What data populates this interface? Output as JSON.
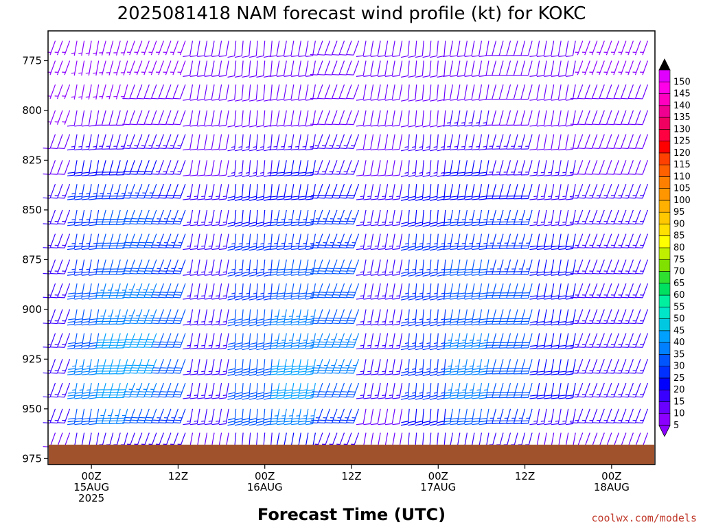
{
  "chart_data": {
    "type": "wind_barb_profile",
    "title": "2025081418 NAM forecast wind profile (kt) for KOKC",
    "xlabel": "Forecast Time (UTC)",
    "ylabel": "",
    "y_axis": {
      "units": "hPa",
      "range": [
        760,
        978
      ],
      "inverted": true,
      "ticks": [
        775,
        800,
        825,
        850,
        875,
        900,
        925,
        950,
        975
      ]
    },
    "x_axis": {
      "units": "forecast hours from 2025-08-14 18Z",
      "range": [
        0,
        84
      ],
      "step_hours": 1,
      "ticks": [
        {
          "hour": 6,
          "lines": [
            "00Z",
            "15AUG",
            "2025"
          ]
        },
        {
          "hour": 18,
          "lines": [
            "12Z"
          ]
        },
        {
          "hour": 30,
          "lines": [
            "00Z",
            "16AUG"
          ]
        },
        {
          "hour": 42,
          "lines": [
            "12Z"
          ]
        },
        {
          "hour": 54,
          "lines": [
            "00Z",
            "17AUG"
          ]
        },
        {
          "hour": 66,
          "lines": [
            "12Z"
          ]
        },
        {
          "hour": 78,
          "lines": [
            "00Z",
            "18AUG"
          ]
        }
      ]
    },
    "barb_levels_hpa": [
      765,
      775,
      787,
      800,
      812,
      825,
      837,
      850,
      862,
      875,
      887,
      900,
      912,
      925,
      937,
      950,
      962
    ],
    "wind_estimate": [
      {
        "hours": [
          0,
          4
        ],
        "speed_by_level": [
          5,
          5,
          5,
          5,
          10,
          10,
          15,
          15,
          15,
          15,
          15,
          15,
          15,
          15,
          15,
          15,
          10
        ],
        "direction_deg": 200
      },
      {
        "hours": [
          4,
          8
        ],
        "speed_by_level": [
          5,
          5,
          5,
          10,
          15,
          20,
          25,
          25,
          25,
          25,
          30,
          30,
          30,
          35,
          35,
          30,
          15
        ],
        "direction_deg": 190
      },
      {
        "hours": [
          8,
          12
        ],
        "speed_by_level": [
          5,
          5,
          5,
          10,
          15,
          20,
          25,
          30,
          30,
          30,
          35,
          35,
          40,
          40,
          40,
          35,
          15
        ],
        "direction_deg": 195
      },
      {
        "hours": [
          12,
          16
        ],
        "speed_by_level": [
          5,
          5,
          10,
          10,
          15,
          20,
          25,
          30,
          30,
          30,
          35,
          35,
          40,
          40,
          35,
          30,
          15
        ],
        "direction_deg": 200
      },
      {
        "hours": [
          16,
          20
        ],
        "speed_by_level": [
          5,
          5,
          10,
          10,
          15,
          15,
          20,
          25,
          25,
          25,
          30,
          30,
          30,
          30,
          30,
          25,
          15
        ],
        "direction_deg": 200
      },
      {
        "hours": [
          20,
          26
        ],
        "speed_by_level": [
          10,
          10,
          10,
          10,
          10,
          10,
          15,
          15,
          15,
          15,
          15,
          15,
          15,
          15,
          15,
          15,
          10
        ],
        "direction_deg": 190
      },
      {
        "hours": [
          26,
          32
        ],
        "speed_by_level": [
          10,
          10,
          10,
          10,
          15,
          15,
          20,
          20,
          25,
          25,
          25,
          30,
          30,
          30,
          30,
          30,
          15
        ],
        "direction_deg": 185
      },
      {
        "hours": [
          32,
          38
        ],
        "speed_by_level": [
          10,
          10,
          10,
          10,
          15,
          20,
          20,
          25,
          25,
          30,
          30,
          35,
          35,
          40,
          40,
          35,
          20
        ],
        "direction_deg": 190
      },
      {
        "hours": [
          38,
          44
        ],
        "speed_by_level": [
          10,
          10,
          10,
          10,
          15,
          15,
          20,
          25,
          25,
          30,
          30,
          30,
          35,
          35,
          30,
          25,
          15
        ],
        "direction_deg": 200
      },
      {
        "hours": [
          44,
          50
        ],
        "speed_by_level": [
          10,
          10,
          10,
          10,
          10,
          10,
          15,
          15,
          15,
          15,
          15,
          15,
          15,
          15,
          15,
          10,
          10
        ],
        "direction_deg": 190
      },
      {
        "hours": [
          50,
          56
        ],
        "speed_by_level": [
          10,
          10,
          10,
          10,
          15,
          15,
          20,
          20,
          25,
          25,
          25,
          25,
          25,
          25,
          25,
          20,
          15
        ],
        "direction_deg": 185
      },
      {
        "hours": [
          56,
          62
        ],
        "speed_by_level": [
          10,
          10,
          10,
          15,
          15,
          20,
          20,
          25,
          25,
          30,
          30,
          30,
          35,
          35,
          35,
          30,
          15
        ],
        "direction_deg": 190
      },
      {
        "hours": [
          62,
          68
        ],
        "speed_by_level": [
          10,
          10,
          10,
          10,
          15,
          15,
          20,
          25,
          25,
          25,
          30,
          30,
          30,
          30,
          30,
          25,
          15
        ],
        "direction_deg": 195
      },
      {
        "hours": [
          68,
          74
        ],
        "speed_by_level": [
          10,
          10,
          10,
          10,
          10,
          15,
          15,
          15,
          20,
          20,
          20,
          20,
          20,
          20,
          20,
          15,
          10
        ],
        "direction_deg": 190
      },
      {
        "hours": [
          74,
          84
        ],
        "speed_by_level": [
          5,
          5,
          10,
          10,
          10,
          10,
          15,
          15,
          15,
          15,
          15,
          15,
          15,
          15,
          15,
          15,
          10
        ],
        "direction_deg": 200
      }
    ],
    "colorbar": {
      "label_values": [
        5,
        10,
        15,
        20,
        25,
        30,
        35,
        40,
        45,
        50,
        55,
        60,
        65,
        70,
        75,
        80,
        85,
        90,
        95,
        100,
        105,
        110,
        115,
        120,
        125,
        130,
        135,
        140,
        145,
        150
      ],
      "colors": [
        "#8B00FF",
        "#6A00FF",
        "#3A00FF",
        "#0000FF",
        "#0030FF",
        "#0055FF",
        "#0080FF",
        "#00A0FF",
        "#00C8E0",
        "#00E6C8",
        "#00F0A0",
        "#00E060",
        "#30E030",
        "#80E000",
        "#C0F000",
        "#FFFF00",
        "#FFE000",
        "#FFC800",
        "#FFB000",
        "#FF9600",
        "#FF8000",
        "#FF6000",
        "#FF4000",
        "#FF0000",
        "#FF0040",
        "#F00060",
        "#F00090",
        "#FF00C0",
        "#FF00E8",
        "#E000FF"
      ]
    },
    "terrain_color": "#A0522D",
    "grid": false
  },
  "credit": "coolwx.com/models"
}
